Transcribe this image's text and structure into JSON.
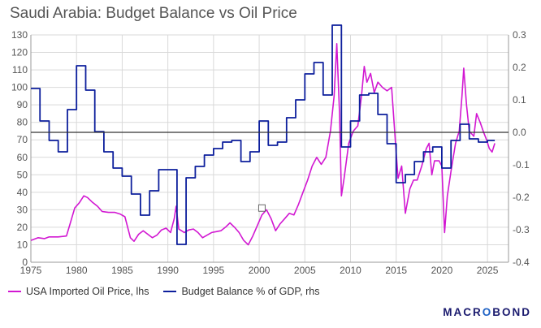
{
  "chart_data": {
    "type": "line",
    "title": "Saudi Arabia: Budget Balance vs Oil Price",
    "x_ticks": [
      1975,
      1980,
      1985,
      1990,
      1995,
      2000,
      2005,
      2010,
      2015,
      2020,
      2025
    ],
    "xlim": [
      1975,
      2027.3
    ],
    "y_left": {
      "ticks": [
        0,
        10,
        20,
        30,
        40,
        50,
        60,
        70,
        80,
        90,
        100,
        110,
        120,
        130
      ],
      "lim": [
        0,
        130
      ]
    },
    "y_right": {
      "ticks": [
        "0.3",
        "0.2",
        "0.1",
        "0.0",
        "-0.1",
        "-0.2",
        "-0.3",
        "-0.4"
      ],
      "lim": [
        -0.4,
        0.3
      ]
    },
    "series": [
      {
        "name": "USA Imported Oil Price, lhs",
        "axis": "left",
        "color": "#d218d2",
        "points": [
          [
            1975,
            12.5
          ],
          [
            1975.8,
            14
          ],
          [
            1976.5,
            13.5
          ],
          [
            1977,
            14.5
          ],
          [
            1978,
            14.5
          ],
          [
            1978.9,
            15
          ],
          [
            1979.3,
            22
          ],
          [
            1979.8,
            31
          ],
          [
            1980.3,
            34
          ],
          [
            1980.8,
            38
          ],
          [
            1981.2,
            37
          ],
          [
            1981.7,
            34.5
          ],
          [
            1982.3,
            32
          ],
          [
            1982.8,
            29
          ],
          [
            1983.5,
            28.5
          ],
          [
            1984.2,
            28.5
          ],
          [
            1984.8,
            27.5
          ],
          [
            1985.3,
            26
          ],
          [
            1985.9,
            14
          ],
          [
            1986.3,
            12
          ],
          [
            1986.8,
            16
          ],
          [
            1987.3,
            18
          ],
          [
            1987.8,
            16
          ],
          [
            1988.3,
            14
          ],
          [
            1988.8,
            15.5
          ],
          [
            1989.3,
            18.5
          ],
          [
            1989.8,
            19.5
          ],
          [
            1990.3,
            17
          ],
          [
            1990.7,
            25
          ],
          [
            1990.9,
            32
          ],
          [
            1991.2,
            19
          ],
          [
            1991.8,
            17
          ],
          [
            1992.3,
            18.5
          ],
          [
            1992.8,
            19
          ],
          [
            1993.3,
            17
          ],
          [
            1993.8,
            14
          ],
          [
            1994.3,
            15.5
          ],
          [
            1994.8,
            17
          ],
          [
            1995.3,
            17.5
          ],
          [
            1995.8,
            18
          ],
          [
            1996.3,
            20
          ],
          [
            1996.8,
            22.5
          ],
          [
            1997.3,
            20
          ],
          [
            1997.8,
            17
          ],
          [
            1998.3,
            12.5
          ],
          [
            1998.8,
            10
          ],
          [
            1999.3,
            15
          ],
          [
            1999.8,
            21
          ],
          [
            2000.3,
            27
          ],
          [
            2000.8,
            30
          ],
          [
            2001.3,
            25
          ],
          [
            2001.8,
            18
          ],
          [
            2002.3,
            22
          ],
          [
            2002.8,
            25
          ],
          [
            2003.3,
            28
          ],
          [
            2003.8,
            27
          ],
          [
            2004.3,
            33
          ],
          [
            2004.8,
            40
          ],
          [
            2005.3,
            47
          ],
          [
            2005.8,
            55
          ],
          [
            2006.3,
            60
          ],
          [
            2006.8,
            56
          ],
          [
            2007.3,
            60
          ],
          [
            2007.8,
            75
          ],
          [
            2008.2,
            95
          ],
          [
            2008.5,
            125
          ],
          [
            2008.8,
            85
          ],
          [
            2009.0,
            38
          ],
          [
            2009.3,
            48
          ],
          [
            2009.8,
            68
          ],
          [
            2010.3,
            75
          ],
          [
            2010.8,
            78
          ],
          [
            2011.2,
            95
          ],
          [
            2011.5,
            112
          ],
          [
            2011.8,
            103
          ],
          [
            2012.2,
            108
          ],
          [
            2012.6,
            97
          ],
          [
            2013.0,
            103
          ],
          [
            2013.5,
            100
          ],
          [
            2014.0,
            98
          ],
          [
            2014.5,
            100
          ],
          [
            2014.9,
            70
          ],
          [
            2015.2,
            48
          ],
          [
            2015.6,
            55
          ],
          [
            2016.0,
            28
          ],
          [
            2016.5,
            42
          ],
          [
            2016.9,
            47
          ],
          [
            2017.3,
            47
          ],
          [
            2017.8,
            55
          ],
          [
            2018.3,
            65
          ],
          [
            2018.6,
            68
          ],
          [
            2018.9,
            50
          ],
          [
            2019.2,
            58
          ],
          [
            2019.7,
            58
          ],
          [
            2020.0,
            55
          ],
          [
            2020.3,
            17
          ],
          [
            2020.6,
            38
          ],
          [
            2021.0,
            52
          ],
          [
            2021.5,
            68
          ],
          [
            2021.9,
            75
          ],
          [
            2022.2,
            95
          ],
          [
            2022.4,
            111
          ],
          [
            2022.7,
            90
          ],
          [
            2023.0,
            75
          ],
          [
            2023.5,
            72
          ],
          [
            2023.8,
            85
          ],
          [
            2024.2,
            80
          ],
          [
            2024.6,
            74
          ],
          [
            2024.9,
            70
          ],
          [
            2025.2,
            65
          ],
          [
            2025.5,
            63
          ],
          [
            2025.8,
            68
          ]
        ]
      },
      {
        "name": "Budget Balance % of GDP, rhs",
        "axis": "right",
        "color": "#0d1f9c",
        "points": [
          [
            1975,
            0.135
          ],
          [
            1976,
            0.135
          ],
          [
            1976,
            0.035
          ],
          [
            1977,
            0.035
          ],
          [
            1977,
            -0.025
          ],
          [
            1978,
            -0.025
          ],
          [
            1978,
            -0.06
          ],
          [
            1979,
            -0.06
          ],
          [
            1979,
            0.07
          ],
          [
            1980,
            0.07
          ],
          [
            1980,
            0.205
          ],
          [
            1981,
            0.205
          ],
          [
            1981,
            0.13
          ],
          [
            1982,
            0.13
          ],
          [
            1982,
            0.002
          ],
          [
            1983,
            0.002
          ],
          [
            1983,
            -0.06
          ],
          [
            1984,
            -0.06
          ],
          [
            1984,
            -0.11
          ],
          [
            1985,
            -0.11
          ],
          [
            1985,
            -0.135
          ],
          [
            1986,
            -0.135
          ],
          [
            1986,
            -0.19
          ],
          [
            1987,
            -0.19
          ],
          [
            1987,
            -0.255
          ],
          [
            1988,
            -0.255
          ],
          [
            1988,
            -0.18
          ],
          [
            1989,
            -0.18
          ],
          [
            1989,
            -0.115
          ],
          [
            1990,
            -0.115
          ],
          [
            1991,
            -0.115
          ],
          [
            1991,
            -0.345
          ],
          [
            1992,
            -0.345
          ],
          [
            1992,
            -0.14
          ],
          [
            1993,
            -0.14
          ],
          [
            1993,
            -0.105
          ],
          [
            1994,
            -0.105
          ],
          [
            1994,
            -0.07
          ],
          [
            1995,
            -0.07
          ],
          [
            1995,
            -0.05
          ],
          [
            1996,
            -0.05
          ],
          [
            1996,
            -0.03
          ],
          [
            1997,
            -0.03
          ],
          [
            1997,
            -0.025
          ],
          [
            1998,
            -0.025
          ],
          [
            1998,
            -0.09
          ],
          [
            1999,
            -0.09
          ],
          [
            1999,
            -0.06
          ],
          [
            2000,
            -0.06
          ],
          [
            2000,
            0.035
          ],
          [
            2001,
            0.035
          ],
          [
            2001,
            -0.04
          ],
          [
            2002,
            -0.04
          ],
          [
            2002,
            -0.03
          ],
          [
            2003,
            -0.03
          ],
          [
            2003,
            0.045
          ],
          [
            2004,
            0.045
          ],
          [
            2004,
            0.1
          ],
          [
            2005,
            0.1
          ],
          [
            2005,
            0.18
          ],
          [
            2006,
            0.18
          ],
          [
            2006,
            0.215
          ],
          [
            2007,
            0.215
          ],
          [
            2007,
            0.115
          ],
          [
            2008,
            0.115
          ],
          [
            2008,
            0.33
          ],
          [
            2009,
            0.33
          ],
          [
            2009,
            -0.045
          ],
          [
            2010,
            -0.045
          ],
          [
            2010,
            0.035
          ],
          [
            2011,
            0.035
          ],
          [
            2011,
            0.115
          ],
          [
            2012,
            0.115
          ],
          [
            2012,
            0.12
          ],
          [
            2013,
            0.12
          ],
          [
            2013,
            0.055
          ],
          [
            2014,
            0.055
          ],
          [
            2014,
            -0.035
          ],
          [
            2015,
            -0.035
          ],
          [
            2015,
            -0.155
          ],
          [
            2016,
            -0.155
          ],
          [
            2016,
            -0.13
          ],
          [
            2017,
            -0.13
          ],
          [
            2017,
            -0.09
          ],
          [
            2018,
            -0.09
          ],
          [
            2018,
            -0.06
          ],
          [
            2019,
            -0.06
          ],
          [
            2019,
            -0.045
          ],
          [
            2020,
            -0.045
          ],
          [
            2020,
            -0.11
          ],
          [
            2021,
            -0.11
          ],
          [
            2021,
            -0.025
          ],
          [
            2022,
            -0.025
          ],
          [
            2022,
            0.025
          ],
          [
            2023,
            0.025
          ],
          [
            2023,
            -0.02
          ],
          [
            2024,
            -0.02
          ],
          [
            2024,
            -0.03
          ],
          [
            2025,
            -0.03
          ],
          [
            2025,
            -0.025
          ],
          [
            2025.8,
            -0.025
          ]
        ]
      }
    ],
    "annotations": [
      {
        "type": "marker",
        "x": 2000.3,
        "y_left": 31
      }
    ],
    "legend_position": "bottom-left"
  },
  "legend": {
    "left_series": "USA Imported Oil Price, lhs",
    "right_series": "Budget Balance % of GDP, rhs"
  },
  "branding": {
    "pre": "MACR",
    "accent": "O",
    "post": "BOND"
  }
}
